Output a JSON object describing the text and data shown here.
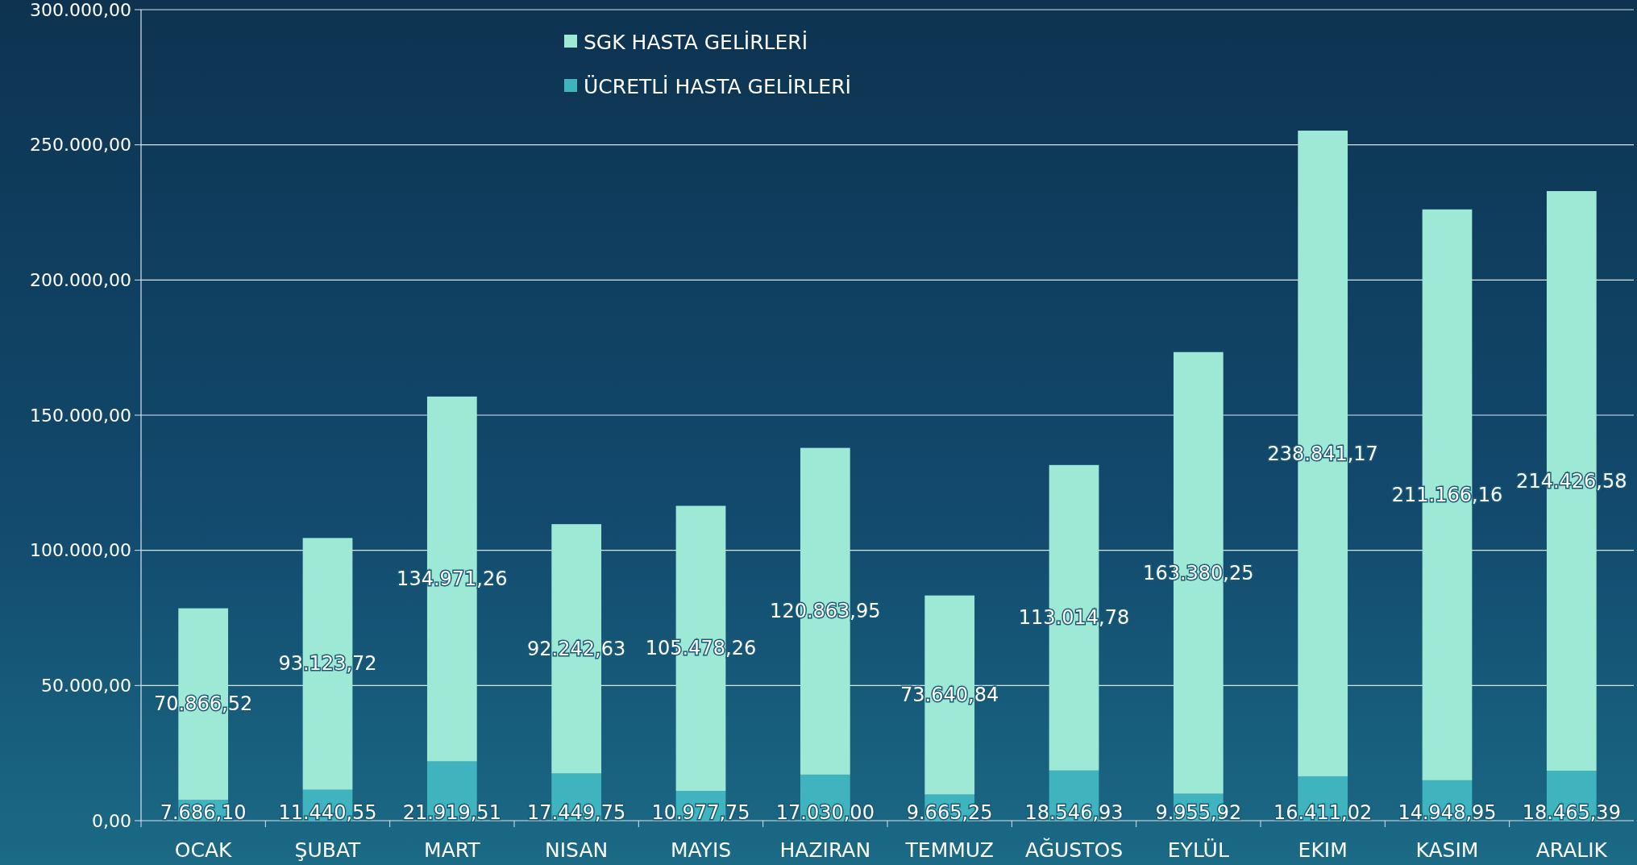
{
  "chart_data": {
    "type": "bar",
    "stacked": true,
    "categories": [
      "OCAK",
      "ŞUBAT",
      "MART",
      "NISAN",
      "MAYIS",
      "HAZIRAN",
      "TEMMUZ",
      "AĞUSTOS",
      "EYLÜL",
      "EKIM",
      "KASIM",
      "ARALIK"
    ],
    "series": [
      {
        "name": "ÜCRETLİ HASTA GELİRLERİ",
        "color": "#3fb4bf",
        "values": [
          7686.1,
          11440.55,
          21919.51,
          17449.75,
          10977.75,
          17030.0,
          9665.25,
          18546.93,
          9955.92,
          16411.02,
          14948.95,
          18465.39
        ],
        "value_labels": [
          "7.686,10",
          "11.440,55",
          "21.919,51",
          "17.449,75",
          "10.977,75",
          "17.030,00",
          "9.665,25",
          "18.546,93",
          "9.955,92",
          "16.411,02",
          "14.948,95",
          "18.465,39"
        ]
      },
      {
        "name": "SGK HASTA GELİRLERİ",
        "color": "#9de9d5",
        "values": [
          70866.52,
          93123.72,
          134971.26,
          92242.63,
          105478.26,
          120863.95,
          73640.84,
          113014.78,
          163380.25,
          238841.17,
          211166.16,
          214426.58
        ],
        "value_labels": [
          "70.866,52",
          "93.123,72",
          "134.971,26",
          "92.242,63",
          "105.478,26",
          "120.863,95",
          "73.640,84",
          "113.014,78",
          "163.380,25",
          "238.841,17",
          "211.166,16",
          "214.426,58"
        ]
      }
    ],
    "ylim": [
      0,
      300000
    ],
    "yticks": [
      {
        "value": 0,
        "label": "0,00"
      },
      {
        "value": 50000,
        "label": "50.000,00"
      },
      {
        "value": 100000,
        "label": "100.000,00"
      },
      {
        "value": 150000,
        "label": "150.000,00"
      },
      {
        "value": 200000,
        "label": "200.000,00"
      },
      {
        "value": 250000,
        "label": "250.000,00"
      },
      {
        "value": 300000,
        "label": "300.000,00"
      }
    ],
    "grid": "y",
    "legend": "top"
  }
}
